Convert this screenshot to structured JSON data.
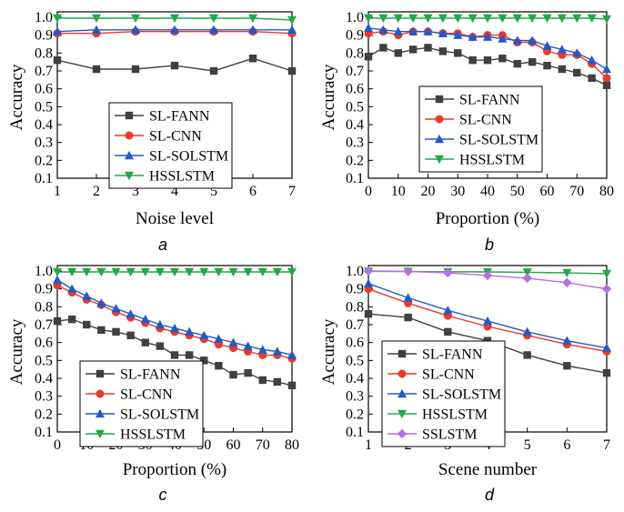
{
  "figure": {
    "panels": [
      "a",
      "b",
      "c",
      "d"
    ]
  },
  "colors": {
    "SL-FANN": "#404040",
    "SL-CNN": "#e8392b",
    "SL-SOLSTM": "#2458c8",
    "HSSLSTM": "#22a84a",
    "SSLSTM": "#b86ee0"
  },
  "markers": {
    "SL-FANN": "square",
    "SL-CNN": "circle",
    "SL-SOLSTM": "triangle-up",
    "HSSLSTM": "triangle-down",
    "SSLSTM": "diamond"
  },
  "chart_data": [
    {
      "type": "line",
      "panel": "a",
      "xlabel": "Noise level",
      "ylabel": "Accuracy",
      "xlim": [
        1,
        7
      ],
      "ylim": [
        0.1,
        1.0
      ],
      "xticks": [
        1,
        2,
        3,
        4,
        5,
        6,
        7
      ],
      "yticks": [
        0.1,
        0.2,
        0.3,
        0.4,
        0.5,
        0.6,
        0.7,
        0.8,
        0.9,
        1.0
      ],
      "x": [
        1,
        2,
        3,
        4,
        5,
        6,
        7
      ],
      "legend_position": "lower-center",
      "series": [
        {
          "name": "SL-FANN",
          "values": [
            0.76,
            0.71,
            0.71,
            0.73,
            0.7,
            0.77,
            0.7
          ]
        },
        {
          "name": "SL-CNN",
          "values": [
            0.91,
            0.91,
            0.92,
            0.92,
            0.92,
            0.92,
            0.91
          ]
        },
        {
          "name": "SL-SOLSTM",
          "values": [
            0.92,
            0.93,
            0.93,
            0.93,
            0.93,
            0.93,
            0.93
          ]
        },
        {
          "name": "HSSLSTM",
          "values": [
            0.995,
            0.995,
            0.995,
            0.995,
            0.995,
            0.995,
            0.985
          ]
        }
      ]
    },
    {
      "type": "line",
      "panel": "b",
      "xlabel": "Proportion (%)",
      "ylabel": "Accuracy",
      "xlim": [
        0,
        80
      ],
      "ylim": [
        0.1,
        1.0
      ],
      "xticks": [
        0,
        10,
        20,
        30,
        40,
        50,
        60,
        70,
        80
      ],
      "yticks": [
        0.1,
        0.2,
        0.3,
        0.4,
        0.5,
        0.6,
        0.7,
        0.8,
        0.9,
        1.0
      ],
      "x": [
        0,
        5,
        10,
        15,
        20,
        25,
        30,
        35,
        40,
        45,
        50,
        55,
        60,
        65,
        70,
        75,
        80
      ],
      "legend_position": "lower-center",
      "series": [
        {
          "name": "SL-FANN",
          "values": [
            0.78,
            0.83,
            0.8,
            0.82,
            0.83,
            0.81,
            0.8,
            0.76,
            0.76,
            0.77,
            0.74,
            0.75,
            0.73,
            0.71,
            0.69,
            0.66,
            0.62
          ]
        },
        {
          "name": "SL-CNN",
          "values": [
            0.91,
            0.92,
            0.9,
            0.92,
            0.92,
            0.91,
            0.91,
            0.89,
            0.9,
            0.9,
            0.86,
            0.86,
            0.81,
            0.79,
            0.79,
            0.74,
            0.66
          ]
        },
        {
          "name": "SL-SOLSTM",
          "values": [
            0.94,
            0.93,
            0.92,
            0.92,
            0.92,
            0.91,
            0.9,
            0.89,
            0.89,
            0.88,
            0.87,
            0.87,
            0.84,
            0.82,
            0.8,
            0.76,
            0.71
          ]
        },
        {
          "name": "HSSLSTM",
          "values": [
            0.995,
            0.995,
            0.995,
            0.995,
            0.995,
            0.995,
            0.995,
            0.995,
            0.995,
            0.995,
            0.995,
            0.995,
            0.995,
            0.995,
            0.995,
            0.995,
            0.99
          ]
        }
      ]
    },
    {
      "type": "line",
      "panel": "c",
      "xlabel": "Proportion (%)",
      "ylabel": "Accuracy",
      "xlim": [
        0,
        80
      ],
      "ylim": [
        0.1,
        1.0
      ],
      "xticks": [
        0,
        10,
        20,
        30,
        40,
        50,
        60,
        70,
        80
      ],
      "yticks": [
        0.1,
        0.2,
        0.3,
        0.4,
        0.5,
        0.6,
        0.7,
        0.8,
        0.9,
        1.0
      ],
      "x": [
        0,
        5,
        10,
        15,
        20,
        25,
        30,
        35,
        40,
        45,
        50,
        55,
        60,
        65,
        70,
        75,
        80
      ],
      "legend_position": "lower-center",
      "series": [
        {
          "name": "SL-FANN",
          "values": [
            0.72,
            0.73,
            0.7,
            0.67,
            0.66,
            0.64,
            0.6,
            0.58,
            0.53,
            0.53,
            0.5,
            0.47,
            0.42,
            0.43,
            0.39,
            0.38,
            0.36
          ]
        },
        {
          "name": "SL-CNN",
          "values": [
            0.92,
            0.88,
            0.84,
            0.81,
            0.77,
            0.74,
            0.71,
            0.68,
            0.66,
            0.64,
            0.62,
            0.59,
            0.57,
            0.55,
            0.53,
            0.53,
            0.51
          ]
        },
        {
          "name": "SL-SOLSTM",
          "values": [
            0.95,
            0.9,
            0.86,
            0.82,
            0.79,
            0.76,
            0.73,
            0.7,
            0.68,
            0.66,
            0.64,
            0.62,
            0.6,
            0.58,
            0.56,
            0.55,
            0.53
          ]
        },
        {
          "name": "HSSLSTM",
          "values": [
            0.995,
            0.995,
            0.995,
            0.995,
            0.995,
            0.995,
            0.995,
            0.995,
            0.995,
            0.995,
            0.995,
            0.995,
            0.995,
            0.995,
            0.995,
            0.995,
            0.995
          ]
        }
      ]
    },
    {
      "type": "line",
      "panel": "d",
      "xlabel": "Scene number",
      "ylabel": "Accuracy",
      "xlim": [
        1,
        7
      ],
      "ylim": [
        0.1,
        1.0
      ],
      "xticks": [
        1,
        2,
        3,
        4,
        5,
        6,
        7
      ],
      "yticks": [
        0.1,
        0.2,
        0.3,
        0.4,
        0.5,
        0.6,
        0.7,
        0.8,
        0.9,
        1.0
      ],
      "x": [
        1,
        2,
        3,
        4,
        5,
        6,
        7
      ],
      "legend_position": "lower-center",
      "series": [
        {
          "name": "SL-FANN",
          "values": [
            0.76,
            0.74,
            0.66,
            0.61,
            0.53,
            0.47,
            0.43
          ]
        },
        {
          "name": "SL-CNN",
          "values": [
            0.9,
            0.82,
            0.75,
            0.69,
            0.64,
            0.59,
            0.55
          ]
        },
        {
          "name": "SL-SOLSTM",
          "values": [
            0.93,
            0.85,
            0.78,
            0.72,
            0.66,
            0.61,
            0.57
          ]
        },
        {
          "name": "HSSLSTM",
          "values": [
            0.998,
            0.997,
            0.996,
            0.995,
            0.993,
            0.99,
            0.985
          ]
        },
        {
          "name": "SSLSTM",
          "values": [
            1.0,
            0.998,
            0.99,
            0.975,
            0.96,
            0.935,
            0.9
          ]
        }
      ]
    }
  ]
}
